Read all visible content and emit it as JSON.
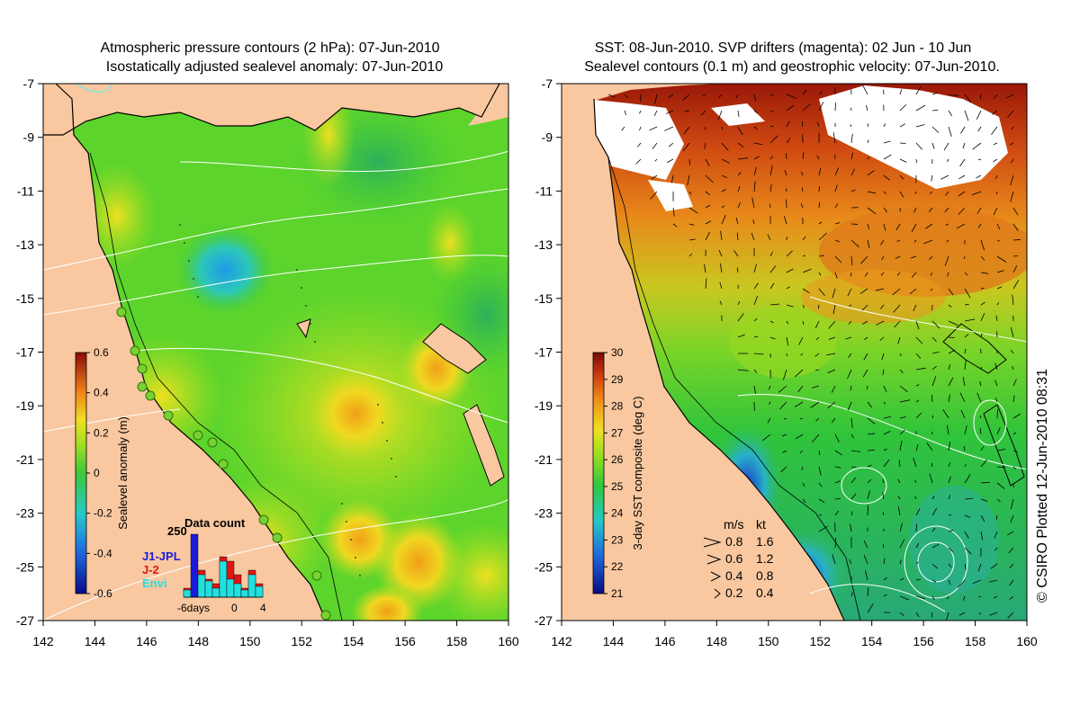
{
  "left_panel": {
    "title_line1": "Atmospheric pressure contours (2 hPa): 07-Jun-2010",
    "title_line2": "Isostatically adjusted sealevel anomaly: 07-Jun-2010",
    "colorbar_label": "Sealevel anomaly (m)",
    "colorbar_ticks": [
      "0.6",
      "0.4",
      "0.2",
      "0",
      "-0.2",
      "-0.4",
      "-0.6"
    ],
    "inset": {
      "title": "Data count",
      "ymax_label": "250",
      "legend": [
        {
          "label": "J1-JPL",
          "color": "#1a1adb"
        },
        {
          "label": "J-2",
          "color": "#e01515"
        },
        {
          "label": "Envi",
          "color": "#22e0e0"
        }
      ],
      "x_label_left": "-6days",
      "x_label_mid": "0",
      "x_label_right": "4"
    }
  },
  "right_panel": {
    "title_line1": "SST: 08-Jun-2010. SVP drifters (magenta): 02 Jun - 10 Jun",
    "title_line2": "Sealevel contours (0.1 m) and geostrophic velocity: 07-Jun-2010.",
    "colorbar_label": "3-day SST composite (deg C)",
    "colorbar_ticks": [
      "30",
      "29",
      "28",
      "27",
      "26",
      "25",
      "24",
      "23",
      "22",
      "21"
    ],
    "velocity_legend": {
      "header_ms": "m/s",
      "header_kt": "kt",
      "rows": [
        {
          "ms": "0.8",
          "kt": "1.6"
        },
        {
          "ms": "0.6",
          "kt": "1.2"
        },
        {
          "ms": "0.4",
          "kt": "0.8"
        },
        {
          "ms": "0.2",
          "kt": "0.4"
        }
      ]
    }
  },
  "y_ticks": [
    "-7",
    "-9",
    "-11",
    "-13",
    "-15",
    "-17",
    "-19",
    "-21",
    "-23",
    "-25",
    "-27"
  ],
  "x_ticks": [
    "142",
    "144",
    "146",
    "148",
    "150",
    "152",
    "154",
    "156",
    "158",
    "160"
  ],
  "credit": "© CSIRO Plotted 12-Jun-2010 08:31",
  "colors": {
    "land": "#f9c8a0",
    "ocean_green": "#5fd52a",
    "cloud": "#ffffff"
  }
}
